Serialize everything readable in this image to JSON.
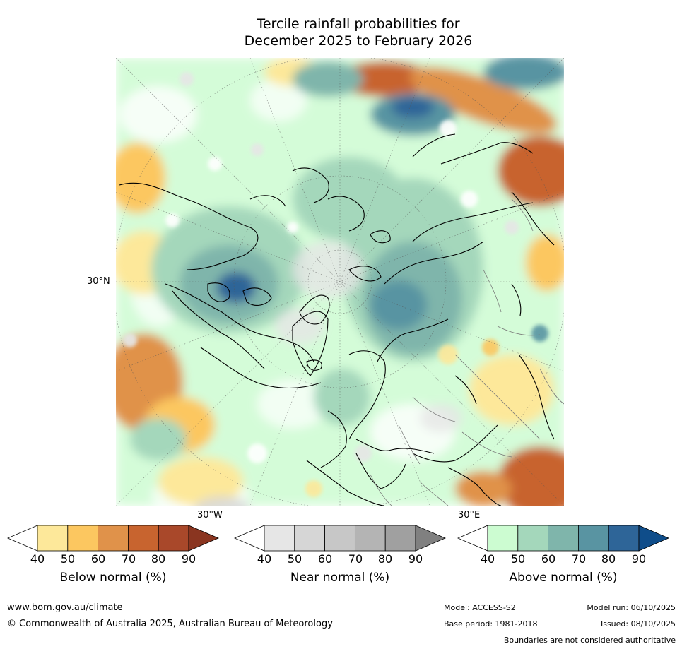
{
  "title": {
    "line1": "Tercile rainfall probabilities for",
    "line2": "December 2025 to February 2026"
  },
  "map": {
    "lat_label": "30°N",
    "lon_label_west": "30°W",
    "lon_label_east": "30°E"
  },
  "legends": [
    {
      "label": "Below normal (%)",
      "ticks": [
        "40",
        "50",
        "60",
        "70",
        "80",
        "90"
      ],
      "colors": [
        "#ffffff",
        "#fde89a",
        "#fcc760",
        "#e0924a",
        "#c8642f",
        "#a9482a",
        "#8a3520"
      ]
    },
    {
      "label": "Near normal (%)",
      "ticks": [
        "40",
        "50",
        "60",
        "70",
        "80",
        "90"
      ],
      "colors": [
        "#ffffff",
        "#e6e6e6",
        "#d6d6d6",
        "#c7c7c7",
        "#b4b4b4",
        "#a0a0a0",
        "#808080"
      ]
    },
    {
      "label": "Above normal (%)",
      "ticks": [
        "40",
        "50",
        "60",
        "70",
        "80",
        "90"
      ],
      "colors": [
        "#ffffff",
        "#ccfcd1",
        "#a4d7bb",
        "#7fb5ab",
        "#5994a2",
        "#2e6598",
        "#0f4d8a"
      ]
    }
  ],
  "footer": {
    "website": "www.bom.gov.au/climate",
    "copyright": "© Commonwealth of Australia 2025, Australian Bureau of Meteorology",
    "model": "Model: ACCESS-S2",
    "model_run": "Model run: 06/10/2025",
    "base_period": "Base period: 1981-2018",
    "issued": "Issued: 08/10/2025",
    "disclaimer": "Boundaries are not considered authoritative"
  }
}
